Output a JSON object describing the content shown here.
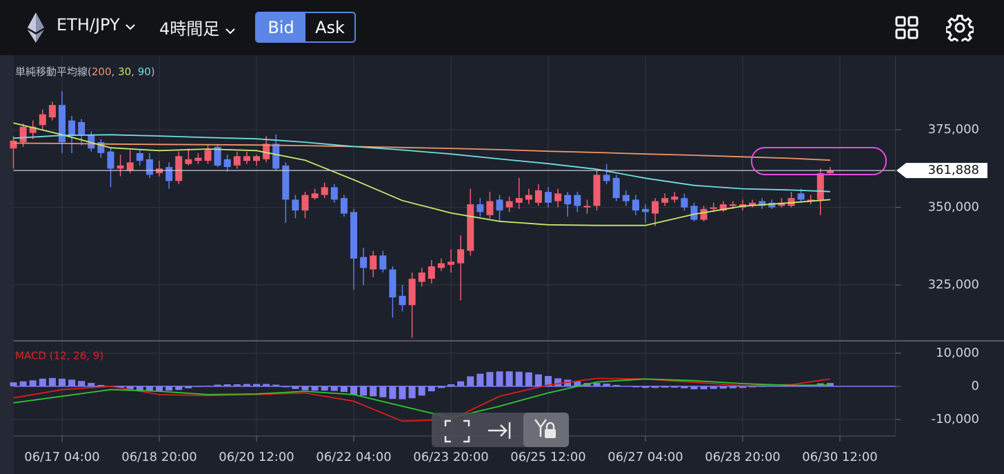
{
  "header": {
    "pair": "ETH/JPY",
    "timeframe": "4時間足",
    "bid": "Bid",
    "ask": "Ask"
  },
  "chart_data": [
    {
      "type": "candlestick",
      "open": [
        369000,
        371000,
        374000,
        376500,
        379000,
        383000,
        378000,
        377500,
        373500,
        371000,
        368000,
        362500,
        362000,
        367500,
        365500,
        361000,
        363000,
        358500,
        364000,
        365000,
        365000,
        369500,
        365500,
        363500,
        365000,
        365000,
        365500,
        370500,
        363500,
        352500,
        349000,
        353000,
        354000,
        356500,
        353000,
        348500,
        334000,
        330000,
        334500,
        330000,
        321500,
        318500,
        326000,
        327000,
        330500,
        331500,
        332000,
        336000,
        351000,
        347500,
        352500,
        350000,
        351500,
        352500,
        351500,
        355000,
        352000,
        354000,
        354000,
        350000,
        350500,
        360500,
        359500,
        354000,
        352500,
        349500,
        348000,
        351500,
        352500,
        353000,
        350500,
        346000,
        349500,
        349000,
        350500,
        350000,
        350500,
        352000,
        351500,
        350500,
        350500,
        354500,
        352000,
        352500,
        361000
      ],
      "high": [
        373000,
        377000,
        378000,
        381500,
        384000,
        387500,
        379500,
        378500,
        374500,
        372000,
        369000,
        367000,
        368500,
        368500,
        367500,
        365000,
        364500,
        368000,
        369000,
        367500,
        370000,
        370500,
        367000,
        368000,
        368000,
        367000,
        373000,
        373500,
        364500,
        354000,
        355000,
        356000,
        358000,
        357500,
        354000,
        349500,
        337000,
        336000,
        336000,
        331000,
        325000,
        329000,
        330500,
        333000,
        333500,
        336500,
        341000,
        356000,
        353000,
        355000,
        354000,
        353500,
        359500,
        356000,
        357500,
        356500,
        356000,
        355000,
        355000,
        352500,
        362000,
        364000,
        360500,
        355500,
        354000,
        351000,
        353000,
        354500,
        355000,
        354500,
        351500,
        350500,
        351500,
        352000,
        352000,
        352500,
        352500,
        353000,
        352500,
        353000,
        355000,
        356000,
        354000,
        362500,
        363000
      ],
      "low": [
        362500,
        369500,
        372000,
        375000,
        378000,
        367500,
        367500,
        370000,
        368000,
        366000,
        356500,
        360000,
        361000,
        363500,
        359500,
        360000,
        356000,
        357500,
        363500,
        364000,
        364000,
        363000,
        361500,
        362500,
        364000,
        363500,
        364500,
        362000,
        345000,
        346500,
        346500,
        352500,
        353000,
        351500,
        347000,
        323500,
        325000,
        327500,
        329000,
        314500,
        316500,
        308000,
        324500,
        325500,
        329500,
        329000,
        320000,
        334500,
        347000,
        346500,
        345500,
        348500,
        349500,
        351000,
        350500,
        350000,
        350000,
        347000,
        348500,
        348000,
        349000,
        357500,
        352000,
        350500,
        347500,
        345000,
        344000,
        350500,
        351500,
        349000,
        345500,
        345500,
        348500,
        348500,
        349500,
        349000,
        350000,
        349500,
        349500,
        350000,
        350000,
        351500,
        351000,
        347500,
        360500
      ],
      "close": [
        371500,
        376000,
        376000,
        380000,
        383000,
        371000,
        373000,
        373500,
        369000,
        367500,
        362500,
        363500,
        364500,
        365000,
        360500,
        362500,
        358500,
        366500,
        365500,
        366000,
        368500,
        363500,
        363000,
        366500,
        366500,
        366500,
        370500,
        362500,
        352500,
        349000,
        354000,
        354500,
        356500,
        352500,
        348000,
        333500,
        330500,
        334500,
        330000,
        321000,
        318500,
        327000,
        329000,
        331000,
        332000,
        332500,
        336500,
        351000,
        348500,
        352000,
        349000,
        352000,
        353000,
        354000,
        355500,
        351500,
        354500,
        351000,
        350500,
        350500,
        360500,
        358500,
        353000,
        352000,
        349000,
        348500,
        352000,
        353000,
        353500,
        350000,
        346000,
        349500,
        350000,
        351000,
        351000,
        351000,
        351500,
        350500,
        350000,
        351500,
        353000,
        352500,
        352500,
        361000,
        361888
      ],
      "up_color": "#f25c6e",
      "down_color": "#5d7ff0",
      "xlim": [
        0,
        90.7
      ],
      "xticks": [
        {
          "value": 5,
          "label": "06/17 04:00"
        },
        {
          "value": 15,
          "label": "06/18 20:00"
        },
        {
          "value": 25,
          "label": "06/20 12:00"
        },
        {
          "value": 35,
          "label": "06/22 04:00"
        },
        {
          "value": 45,
          "label": "06/23 20:00"
        },
        {
          "value": 55,
          "label": "06/25 12:00"
        },
        {
          "value": 65,
          "label": "06/27 04:00"
        },
        {
          "value": 75,
          "label": "06/28 20:00"
        },
        {
          "value": 85,
          "label": "06/30 12:00"
        }
      ],
      "ylim": [
        307000,
        398600
      ],
      "yticks": [
        {
          "value": 325000,
          "label": "325,000"
        },
        {
          "value": 350000,
          "label": "350,000"
        },
        {
          "value": 375000,
          "label": "375,000"
        }
      ],
      "grid": true,
      "last_price": {
        "value": 361888,
        "label": "361,888"
      },
      "ma_legend": {
        "title": "単純移動平均線",
        "open": "(",
        "sep": ", ",
        "close": ")"
      },
      "moving_averages": [
        {
          "name": "200",
          "color": "#f0956a",
          "x": [
            0,
            5,
            10,
            15,
            20,
            25,
            30,
            35,
            40,
            45,
            50,
            55,
            60,
            65,
            70,
            75,
            80,
            84
          ],
          "values": [
            370700,
            370600,
            370400,
            370300,
            370200,
            370100,
            369900,
            369600,
            369300,
            369000,
            368600,
            368100,
            367700,
            367200,
            366800,
            366300,
            365800,
            365200
          ]
        },
        {
          "name": "30",
          "color": "#c8e86a",
          "x": [
            0,
            5,
            10,
            15,
            20,
            25,
            30,
            35,
            40,
            45,
            50,
            55,
            60,
            65,
            70,
            75,
            80,
            84
          ],
          "values": [
            377200,
            373400,
            369200,
            368300,
            368800,
            368300,
            365200,
            358900,
            352200,
            348200,
            345500,
            344400,
            344200,
            344200,
            347800,
            350400,
            351500,
            352500
          ]
        },
        {
          "name": "90",
          "color": "#6fe0e0",
          "x": [
            0,
            5,
            10,
            15,
            20,
            25,
            30,
            35,
            40,
            45,
            50,
            55,
            60,
            65,
            70,
            75,
            80,
            84
          ],
          "values": [
            372300,
            373200,
            373400,
            373000,
            372500,
            372100,
            371000,
            369600,
            368500,
            367200,
            365600,
            364100,
            362300,
            359400,
            357100,
            356000,
            355600,
            355100
          ]
        }
      ]
    },
    {
      "type": "macd",
      "title": "MACD (12, 26, 9)",
      "title_color": "#d8232a",
      "xlim": [
        0,
        90.7
      ],
      "ylim": [
        -15000,
        13500
      ],
      "yticks": [
        {
          "value": -10000,
          "label": "-10,000"
        },
        0,
        {
          "value": 10000,
          "label": "10,000"
        }
      ],
      "grid": true,
      "histogram": {
        "color": "#7f7ef2",
        "values": [
          1200,
          1500,
          1800,
          2300,
          2500,
          2300,
          2000,
          1600,
          1000,
          400,
          -200,
          -600,
          -900,
          -1200,
          -1400,
          -1400,
          -1300,
          -1100,
          -600,
          -200,
          200,
          500,
          600,
          600,
          700,
          700,
          700,
          500,
          -300,
          -800,
          -1200,
          -1300,
          -1300,
          -1400,
          -1700,
          -2500,
          -2800,
          -3000,
          -3300,
          -3800,
          -3900,
          -3600,
          -2800,
          -1500,
          -500,
          600,
          1500,
          3000,
          3800,
          4300,
          4500,
          4500,
          4400,
          4200,
          3600,
          3100,
          2400,
          2000,
          1500,
          1000,
          1000,
          800,
          400,
          0,
          -300,
          -500,
          -500,
          -400,
          -400,
          -600,
          -900,
          -900,
          -800,
          -700,
          -600,
          -500,
          -300,
          -200,
          -100,
          -100,
          100,
          300,
          400,
          900,
          1000
        ]
      },
      "lines": [
        {
          "color": "#e01c1c",
          "x": [
            0,
            5,
            10,
            15,
            20,
            25,
            30,
            35,
            40,
            45,
            50,
            55,
            60,
            65,
            70,
            75,
            80,
            84
          ],
          "values": [
            -3500,
            -1000,
            0,
            -2500,
            -2800,
            -2500,
            -2000,
            -4500,
            -10500,
            -10000,
            -3000,
            400,
            2400,
            2200,
            1200,
            200,
            500,
            2200
          ]
        },
        {
          "color": "#2ec82e",
          "x": [
            0,
            5,
            10,
            15,
            20,
            25,
            30,
            35,
            40,
            45,
            50,
            55,
            60,
            65,
            70,
            75,
            80,
            84
          ],
          "values": [
            -5000,
            -3000,
            -1000,
            -1500,
            -2500,
            -2300,
            -1500,
            -2500,
            -6000,
            -9500,
            -6000,
            -2000,
            1300,
            2200,
            1700,
            800,
            300,
            400
          ]
        }
      ]
    }
  ]
}
